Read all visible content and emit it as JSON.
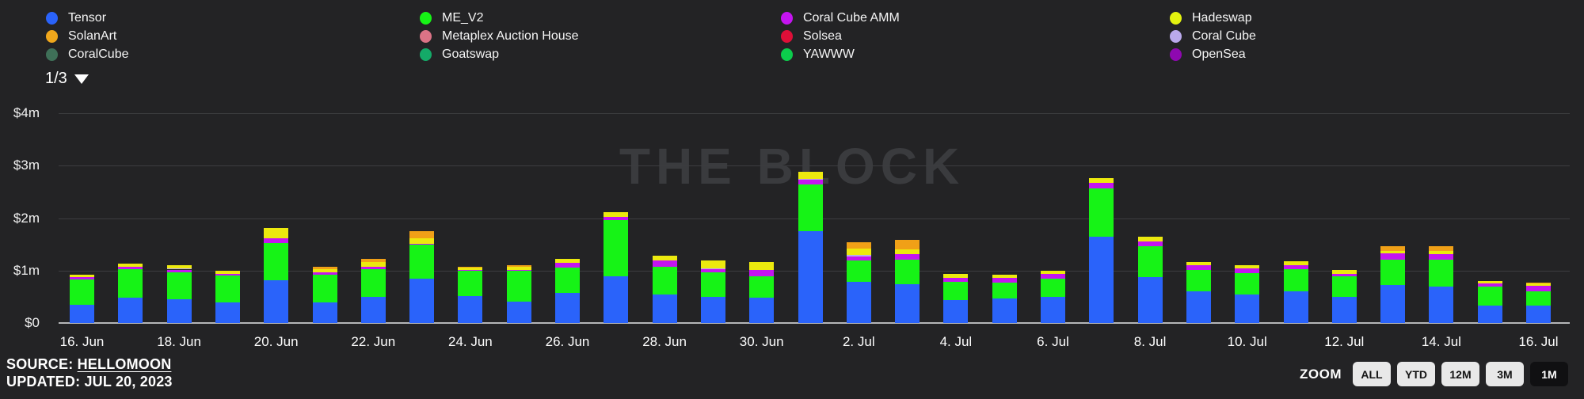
{
  "legend": {
    "pager": "1/3",
    "columns": [
      [
        {
          "label": "Tensor",
          "color": "#2a63fa"
        },
        {
          "label": "SolanArt",
          "color": "#f0a71c"
        },
        {
          "label": "CoralCube",
          "color": "#3f7058"
        }
      ],
      [
        {
          "label": "ME_V2",
          "color": "#16f316"
        },
        {
          "label": "Metaplex Auction House",
          "color": "#db7386"
        },
        {
          "label": "Goatswap",
          "color": "#14aa68"
        }
      ],
      [
        {
          "label": "Coral Cube AMM",
          "color": "#c414f0"
        },
        {
          "label": "Solsea",
          "color": "#de0f38"
        },
        {
          "label": "YAWWW",
          "color": "#0ccc4c"
        }
      ],
      [
        {
          "label": "Hadeswap",
          "color": "#e3f20f"
        },
        {
          "label": "Coral Cube",
          "color": "#baa9ec"
        },
        {
          "label": "OpenSea",
          "color": "#8e08b0"
        }
      ]
    ]
  },
  "watermark": "THE BLOCK",
  "footer": {
    "source_label": "SOURCE:",
    "source_name": "HELLOMOON",
    "updated": "UPDATED: JUL 20, 2023"
  },
  "zoom": {
    "label": "ZOOM",
    "buttons": [
      {
        "label": "ALL",
        "active": false
      },
      {
        "label": "YTD",
        "active": false
      },
      {
        "label": "12M",
        "active": false
      },
      {
        "label": "3M",
        "active": false
      },
      {
        "label": "1M",
        "active": true
      }
    ]
  },
  "chart_data": {
    "type": "bar",
    "stacked": true,
    "unit": "$m (USD millions, daily Solana NFT marketplace volume)",
    "grid": true,
    "legend_position": "top",
    "ylim": [
      0,
      4.5
    ],
    "y_ticks": [
      {
        "label": "$4m",
        "value": 4
      },
      {
        "label": "$3m",
        "value": 3
      },
      {
        "label": "$2m",
        "value": 2
      },
      {
        "label": "$1m",
        "value": 1
      },
      {
        "label": "$0",
        "value": 0
      }
    ],
    "x_tick_step": 2,
    "categories": [
      "16. Jun",
      "17. Jun",
      "18. Jun",
      "19. Jun",
      "20. Jun",
      "21. Jun",
      "22. Jun",
      "23. Jun",
      "24. Jun",
      "25. Jun",
      "26. Jun",
      "27. Jun",
      "28. Jun",
      "29. Jun",
      "30. Jun",
      "1. Jul",
      "2. Jul",
      "3. Jul",
      "4. Jul",
      "5. Jul",
      "6. Jul",
      "7. Jul",
      "8. Jul",
      "9. Jul",
      "10. Jul",
      "11. Jul",
      "12. Jul",
      "13. Jul",
      "14. Jul",
      "15. Jul",
      "16. Jul"
    ],
    "series": [
      {
        "name": "Tensor",
        "color": "#2a63fa",
        "values": [
          0.35,
          0.48,
          0.45,
          0.4,
          0.82,
          0.4,
          0.5,
          0.84,
          0.52,
          0.41,
          0.58,
          0.89,
          0.55,
          0.5,
          0.48,
          1.75,
          0.78,
          0.74,
          0.44,
          0.47,
          0.5,
          1.65,
          0.88,
          0.6,
          0.55,
          0.6,
          0.5,
          0.73,
          0.69,
          0.34,
          0.33
        ]
      },
      {
        "name": "ME_V2",
        "color": "#16f316",
        "values": [
          0.48,
          0.55,
          0.52,
          0.5,
          0.7,
          0.52,
          0.52,
          0.65,
          0.47,
          0.58,
          0.48,
          1.07,
          0.53,
          0.47,
          0.41,
          0.9,
          0.41,
          0.47,
          0.34,
          0.3,
          0.35,
          0.92,
          0.58,
          0.41,
          0.4,
          0.43,
          0.39,
          0.48,
          0.52,
          0.35,
          0.28
        ]
      },
      {
        "name": "Coral Cube AMM",
        "color": "#c414f0",
        "values": [
          0.045,
          0.045,
          0.05,
          0.03,
          0.09,
          0.05,
          0.05,
          0.02,
          0.025,
          0.02,
          0.09,
          0.06,
          0.12,
          0.06,
          0.12,
          0.08,
          0.08,
          0.11,
          0.085,
          0.085,
          0.09,
          0.1,
          0.1,
          0.1,
          0.1,
          0.075,
          0.05,
          0.125,
          0.11,
          0.06,
          0.1
        ]
      },
      {
        "name": "Coral Cube",
        "color": "#baa9ec",
        "values": [
          0,
          0,
          0.03,
          0,
          0,
          0,
          0,
          0,
          0,
          0,
          0,
          0,
          0,
          0.02,
          0,
          0.02,
          0.03,
          0,
          0,
          0,
          0,
          0,
          0,
          0,
          0,
          0,
          0,
          0,
          0,
          0,
          0
        ]
      },
      {
        "name": "Hadeswap",
        "color": "#ece90e",
        "values": [
          0.045,
          0.055,
          0.06,
          0.06,
          0.21,
          0.06,
          0.09,
          0.1,
          0.05,
          0.07,
          0.08,
          0.09,
          0.09,
          0.15,
          0.15,
          0.13,
          0.12,
          0.09,
          0.075,
          0.065,
          0.06,
          0.1,
          0.08,
          0.06,
          0.055,
          0.07,
          0.065,
          0.045,
          0.06,
          0.055,
          0.04
        ]
      },
      {
        "name": "SolanArt",
        "color": "#f0a017",
        "values": [
          0,
          0,
          0,
          0,
          0,
          0.04,
          0.07,
          0.14,
          0.015,
          0.02,
          0,
          0,
          0,
          0,
          0,
          0,
          0.12,
          0.18,
          0,
          0,
          0,
          0,
          0,
          0,
          0,
          0,
          0,
          0.09,
          0.08,
          0,
          0.01
        ]
      }
    ]
  }
}
